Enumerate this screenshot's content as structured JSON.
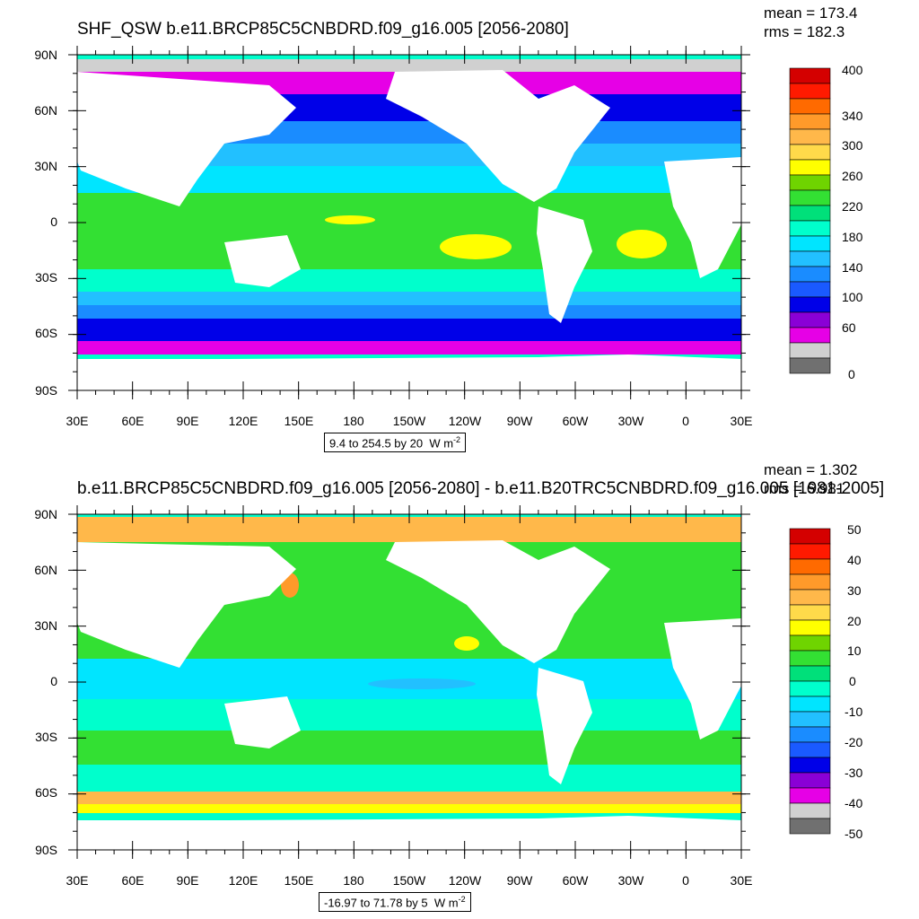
{
  "panels": [
    {
      "id": "top",
      "title": "SHF_QSW b.e11.BRCP85C5CNBDRD.f09_g16.005 [2056-2080]",
      "mean_text": "mean = 173.4",
      "rms_text": "rms = 182.3",
      "range_text": "9.4 to 254.5 by 20",
      "units_text": "W m",
      "units_exp": "-2",
      "y_labels": [
        "90N",
        "60N",
        "30N",
        "0",
        "30S",
        "60S",
        "90S"
      ],
      "x_labels": [
        "30E",
        "60E",
        "90E",
        "120E",
        "150E",
        "180",
        "150W",
        "120W",
        "90W",
        "60W",
        "30W",
        "0",
        "30E"
      ],
      "colorbar": {
        "colors": [
          "#d40000",
          "#ff1a00",
          "#ff6a00",
          "#ff9a2a",
          "#ffb84a",
          "#ffda4a",
          "#ffff00",
          "#6fd400",
          "#33e033",
          "#00e07a",
          "#00ffcc",
          "#00e5ff",
          "#22c0ff",
          "#1a8cff",
          "#1a5aff",
          "#0000e8",
          "#8a00d6",
          "#e600e6",
          "#d0d0d0",
          "#707070"
        ],
        "labels": [
          "400",
          "340",
          "300",
          "260",
          "220",
          "180",
          "140",
          "100",
          "60",
          "0"
        ]
      }
    },
    {
      "id": "bottom",
      "title": "b.e11.BRCP85C5CNBDRD.f09_g16.005 [2056-2080] - b.e11.B20TRC5CNBDRD.f09_g16.005 [1981-2005]",
      "mean_text": "mean = 1.302",
      "rms_text": "rms = 6.981",
      "range_text": "-16.97 to 71.78 by 5",
      "units_text": "W m",
      "units_exp": "-2",
      "y_labels": [
        "90N",
        "60N",
        "30N",
        "0",
        "30S",
        "60S",
        "90S"
      ],
      "x_labels": [
        "30E",
        "60E",
        "90E",
        "120E",
        "150E",
        "180",
        "150W",
        "120W",
        "90W",
        "60W",
        "30W",
        "0",
        "30E"
      ],
      "colorbar": {
        "colors": [
          "#d40000",
          "#ff1a00",
          "#ff6a00",
          "#ff9a2a",
          "#ffb84a",
          "#ffda4a",
          "#ffff00",
          "#6fd400",
          "#33e033",
          "#00e07a",
          "#00ffcc",
          "#00e5ff",
          "#22c0ff",
          "#1a8cff",
          "#1a5aff",
          "#0000e8",
          "#8a00d6",
          "#e600e6",
          "#d0d0d0",
          "#707070"
        ],
        "labels": [
          "50",
          "40",
          "30",
          "20",
          "10",
          "0",
          "-10",
          "-20",
          "-30",
          "-40",
          "-50"
        ]
      }
    }
  ]
}
